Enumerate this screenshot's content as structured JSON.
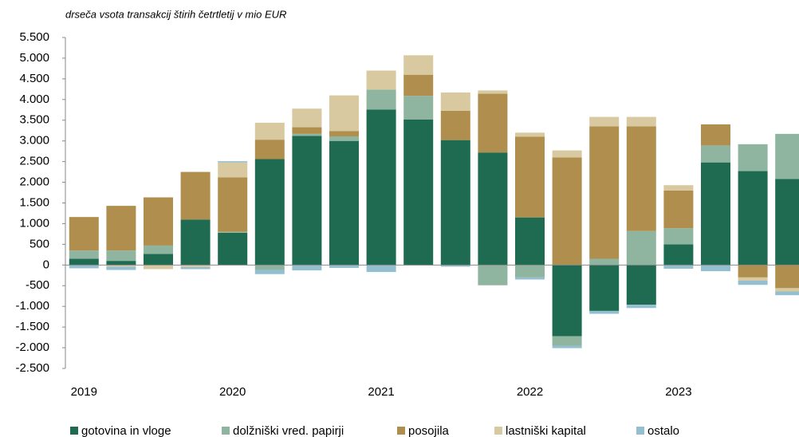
{
  "chart_data": {
    "type": "stacked_bar",
    "subtitle": "drseča vsota transakcij štirih četrtletij v mio EUR",
    "categories": [
      "2019",
      null,
      null,
      null,
      "2020",
      null,
      null,
      null,
      "2021",
      null,
      null,
      null,
      "2022",
      null,
      null,
      null,
      "2023",
      null,
      null,
      null
    ],
    "series": [
      {
        "name": "gotovina in vloge",
        "color": "#1e6b52",
        "values": [
          150,
          100,
          270,
          1100,
          780,
          2560,
          3120,
          3000,
          3760,
          3520,
          3020,
          2720,
          1150,
          -1720,
          -1110,
          -960,
          500,
          2480,
          2270,
          2080
        ]
      },
      {
        "name": "dolžniški vred. papirji",
        "color": "#8fb5a0",
        "values": [
          200,
          250,
          200,
          0,
          20,
          -120,
          50,
          110,
          480,
          570,
          0,
          -490,
          -300,
          -230,
          150,
          820,
          390,
          410,
          650,
          1090
        ]
      },
      {
        "name": "posojila",
        "color": "#b08f4e",
        "values": [
          810,
          1080,
          1165,
          1150,
          1320,
          470,
          160,
          130,
          0,
          510,
          710,
          1420,
          1950,
          2600,
          3200,
          2530,
          910,
          510,
          -300,
          -560
        ]
      },
      {
        "name": "lastniški kapital",
        "color": "#d9c9a0",
        "values": [
          0,
          -40,
          -100,
          -50,
          360,
          410,
          450,
          860,
          460,
          470,
          440,
          80,
          100,
          170,
          230,
          230,
          130,
          0,
          -80,
          -80
        ]
      },
      {
        "name": "ostalo",
        "color": "#93bfd0",
        "values": [
          -80,
          -80,
          0,
          -50,
          30,
          -100,
          -130,
          -70,
          -170,
          -10,
          -40,
          0,
          -50,
          -60,
          -70,
          -80,
          -90,
          -150,
          -100,
          -90
        ]
      }
    ],
    "ylim": [
      -2500,
      5500
    ],
    "yticks": [
      {
        "value": -2500,
        "label": "-2.500"
      },
      {
        "value": -2000,
        "label": "-2.000"
      },
      {
        "value": -1500,
        "label": "-1.500"
      },
      {
        "value": -1000,
        "label": "-1.000"
      },
      -500,
      0,
      500,
      {
        "value": 1000,
        "label": "1.000"
      },
      {
        "value": 1500,
        "label": "1.500"
      },
      {
        "value": 2000,
        "label": "2.000"
      },
      {
        "value": 2500,
        "label": "2.500"
      },
      {
        "value": 3000,
        "label": "3.000"
      },
      {
        "value": 3500,
        "label": "3.500"
      },
      {
        "value": 4000,
        "label": "4.000"
      },
      {
        "value": 4500,
        "label": "4.500"
      },
      {
        "value": 5000,
        "label": "5.000"
      },
      {
        "value": 5500,
        "label": "5.500"
      }
    ],
    "grid": false,
    "legend": "bottom"
  }
}
